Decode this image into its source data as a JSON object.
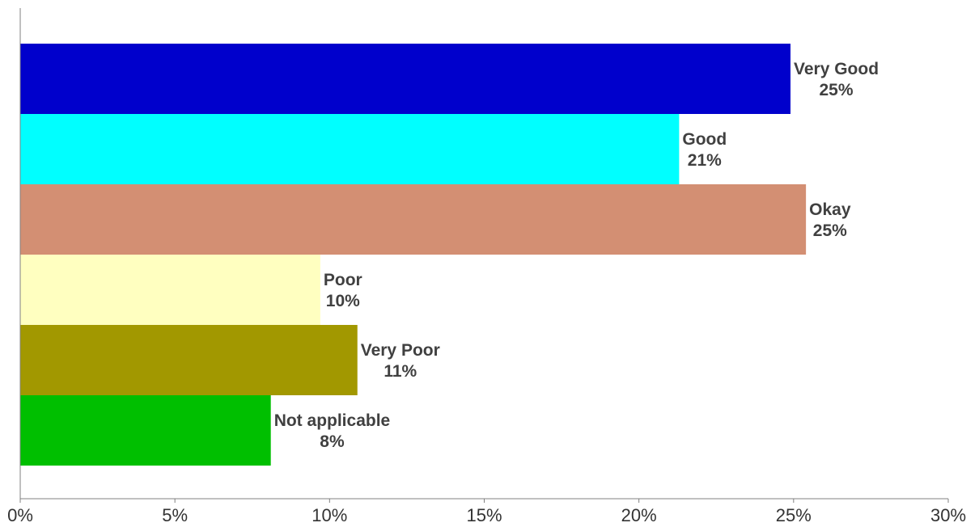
{
  "chart_data": {
    "type": "bar",
    "orientation": "horizontal",
    "categories": [
      "Very Good",
      "Good",
      "Okay",
      "Poor",
      "Very Poor",
      "Not applicable"
    ],
    "values": [
      24.9,
      21.3,
      25.4,
      9.7,
      10.9,
      8.1
    ],
    "value_labels": [
      "25%",
      "21%",
      "25%",
      "10%",
      "11%",
      "8%"
    ],
    "colors": [
      "#0000CC",
      "#00FFFF",
      "#D38F73",
      "#FFFFC0",
      "#A29800",
      "#00BF00"
    ],
    "xlim": [
      0,
      30
    ],
    "xticks": [
      "0%",
      "5%",
      "10%",
      "15%",
      "20%",
      "25%",
      "30%"
    ],
    "xtick_values": [
      0,
      5,
      10,
      15,
      20,
      25,
      30
    ],
    "grid": false,
    "legend": false,
    "title": "",
    "xlabel": "",
    "ylabel": ""
  }
}
